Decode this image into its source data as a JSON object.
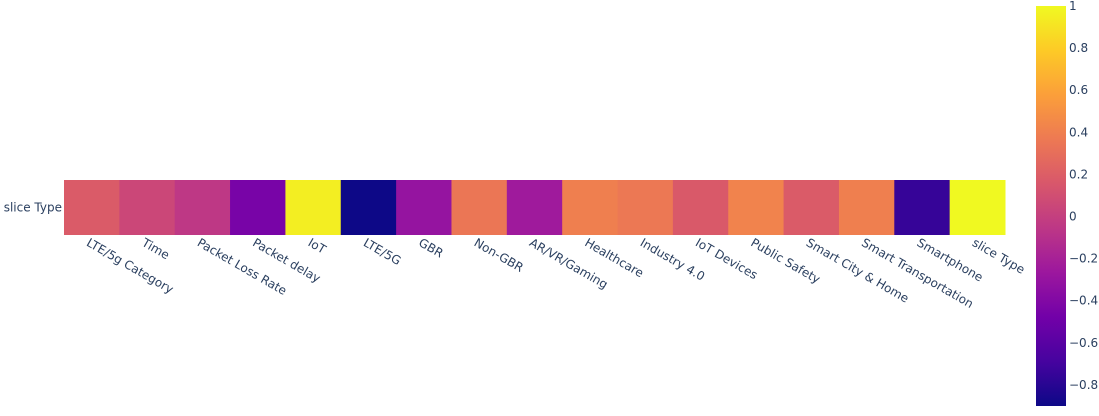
{
  "chart_data": {
    "type": "heatmap",
    "title": "",
    "xlabel": "",
    "ylabel": "",
    "y_categories": [
      "slice Type"
    ],
    "x_categories": [
      "LTE/5g Category",
      "Time",
      "Packet Loss Rate",
      "Packet delay",
      "IoT",
      "LTE/5G",
      "GBR",
      "Non-GBR",
      "AR/VR/Gaming",
      "Healthcare",
      "Industry 4.0",
      "IoT Devices",
      "Public Safety",
      "Smart City & Home",
      "Smart Transportation",
      "Smartphone",
      "slice Type"
    ],
    "values": [
      [
        0.18,
        0.05,
        -0.05,
        -0.45,
        0.95,
        -0.9,
        -0.3,
        0.35,
        -0.25,
        0.4,
        0.36,
        0.17,
        0.42,
        0.18,
        0.4,
        -0.75,
        1.0
      ]
    ],
    "zmin": -0.9,
    "zmax": 1.0,
    "colorscale": "plasma",
    "colorbar": {
      "ticks": [
        1,
        0.8,
        0.6,
        0.4,
        0.2,
        0,
        -0.2,
        -0.4,
        -0.6,
        -0.8
      ],
      "tick_labels": [
        "1",
        "0.8",
        "0.6",
        "0.4",
        "0.2",
        "0",
        "−0.2",
        "−0.4",
        "−0.6",
        "−0.8"
      ]
    },
    "grid": false,
    "legend": "colorbar-right"
  },
  "colors": {
    "plasma_stops": [
      "#0d0887",
      "#46039f",
      "#7201a8",
      "#9c179e",
      "#bd3786",
      "#d8576b",
      "#ed7953",
      "#fb9f3a",
      "#fdca26",
      "#f0f921"
    ],
    "axis_text": "#2a3f5f"
  }
}
